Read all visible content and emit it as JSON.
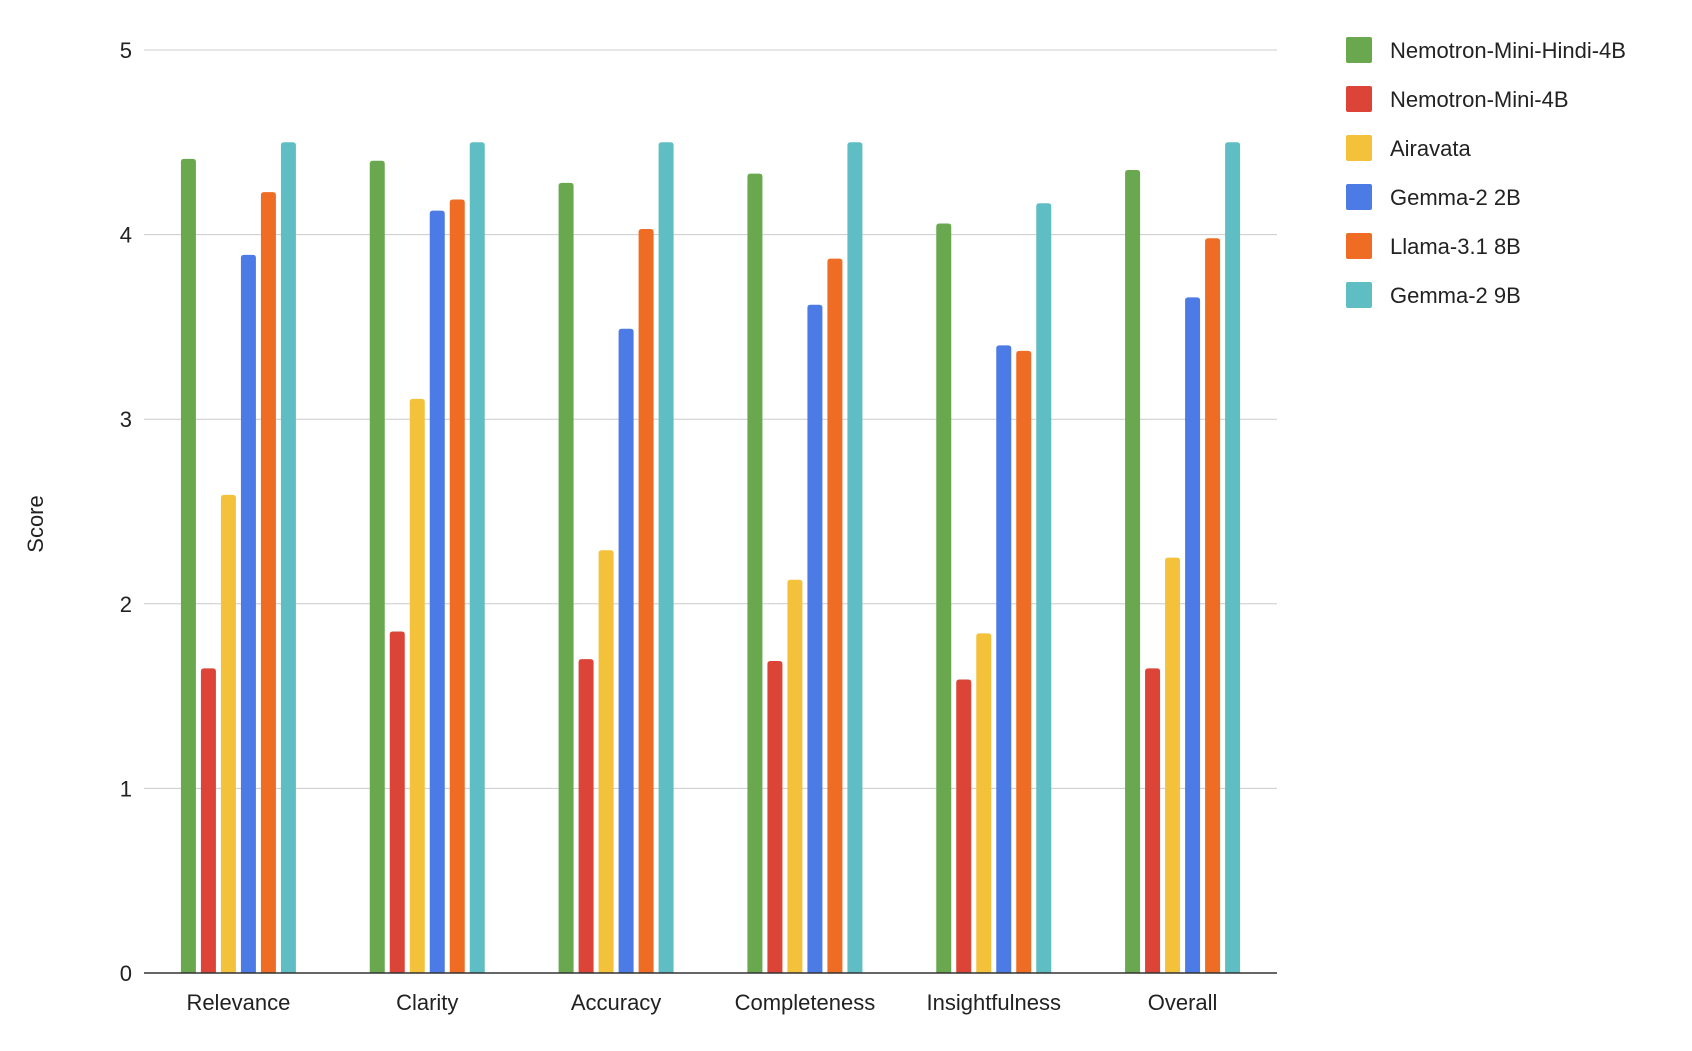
{
  "chart_data": {
    "type": "bar",
    "title": "",
    "xlabel": "",
    "ylabel": "Score",
    "ylim": [
      0,
      5
    ],
    "yticks": [
      "0",
      "1",
      "2",
      "3",
      "4",
      "5"
    ],
    "grid": true,
    "legend_position": "right",
    "categories": [
      "Relevance",
      "Clarity",
      "Accuracy",
      "Completeness",
      "Insightfulness",
      "Overall"
    ],
    "series": [
      {
        "name": "Nemotron-Mini-Hindi-4B",
        "color": "#6AA84F",
        "values": [
          4.41,
          4.4,
          4.28,
          4.33,
          4.06,
          4.35
        ]
      },
      {
        "name": "Nemotron-Mini-4B",
        "color": "#DB4437",
        "values": [
          1.65,
          1.85,
          1.7,
          1.69,
          1.59,
          1.65
        ]
      },
      {
        "name": "Airavata",
        "color": "#F4C13B",
        "values": [
          2.59,
          3.11,
          2.29,
          2.13,
          1.84,
          2.25
        ]
      },
      {
        "name": "Gemma-2 2B",
        "color": "#4C7BE5",
        "values": [
          3.89,
          4.13,
          3.49,
          3.62,
          3.4,
          3.66
        ]
      },
      {
        "name": "Llama-3.1 8B",
        "color": "#EF6C24",
        "values": [
          4.23,
          4.19,
          4.03,
          3.87,
          3.37,
          3.98
        ]
      },
      {
        "name": "Gemma-2 9B",
        "color": "#5FBEC4",
        "values": [
          4.5,
          4.5,
          4.5,
          4.5,
          4.17,
          4.5
        ]
      }
    ]
  }
}
